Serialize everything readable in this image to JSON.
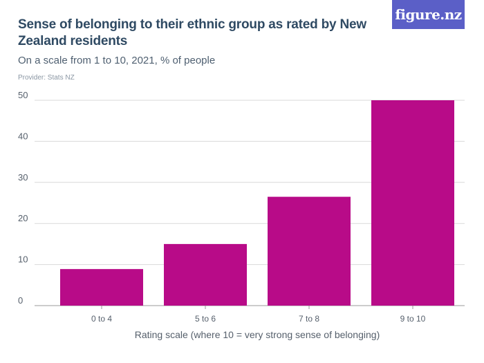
{
  "header": {
    "title": "Sense of belonging to their ethnic group as rated by New Zealand residents",
    "subtitle": "On a scale from 1 to 10, 2021, % of people",
    "provider": "Provider: Stats NZ",
    "logo_text": "figure.nz"
  },
  "colors": {
    "bar": "#b80b88",
    "title": "#2f4a63",
    "logo_bg": "#5b5fc7",
    "gridline": "#d9d9d9",
    "axis": "#9a9a9a"
  },
  "chart_data": {
    "type": "bar",
    "title": "Sense of belonging to their ethnic group as rated by New Zealand residents",
    "subtitle": "On a scale from 1 to 10, 2021, % of people",
    "xlabel": "Rating scale (where 10 = very strong sense of belonging)",
    "ylabel": "",
    "categories": [
      "0 to 4",
      "5 to 6",
      "7 to 8",
      "9 to 10"
    ],
    "values": [
      8.9,
      15,
      26.5,
      50.2
    ],
    "ylim": [
      0,
      50
    ],
    "yticks": [
      0,
      10,
      20,
      30,
      40,
      50
    ],
    "grid": true
  }
}
